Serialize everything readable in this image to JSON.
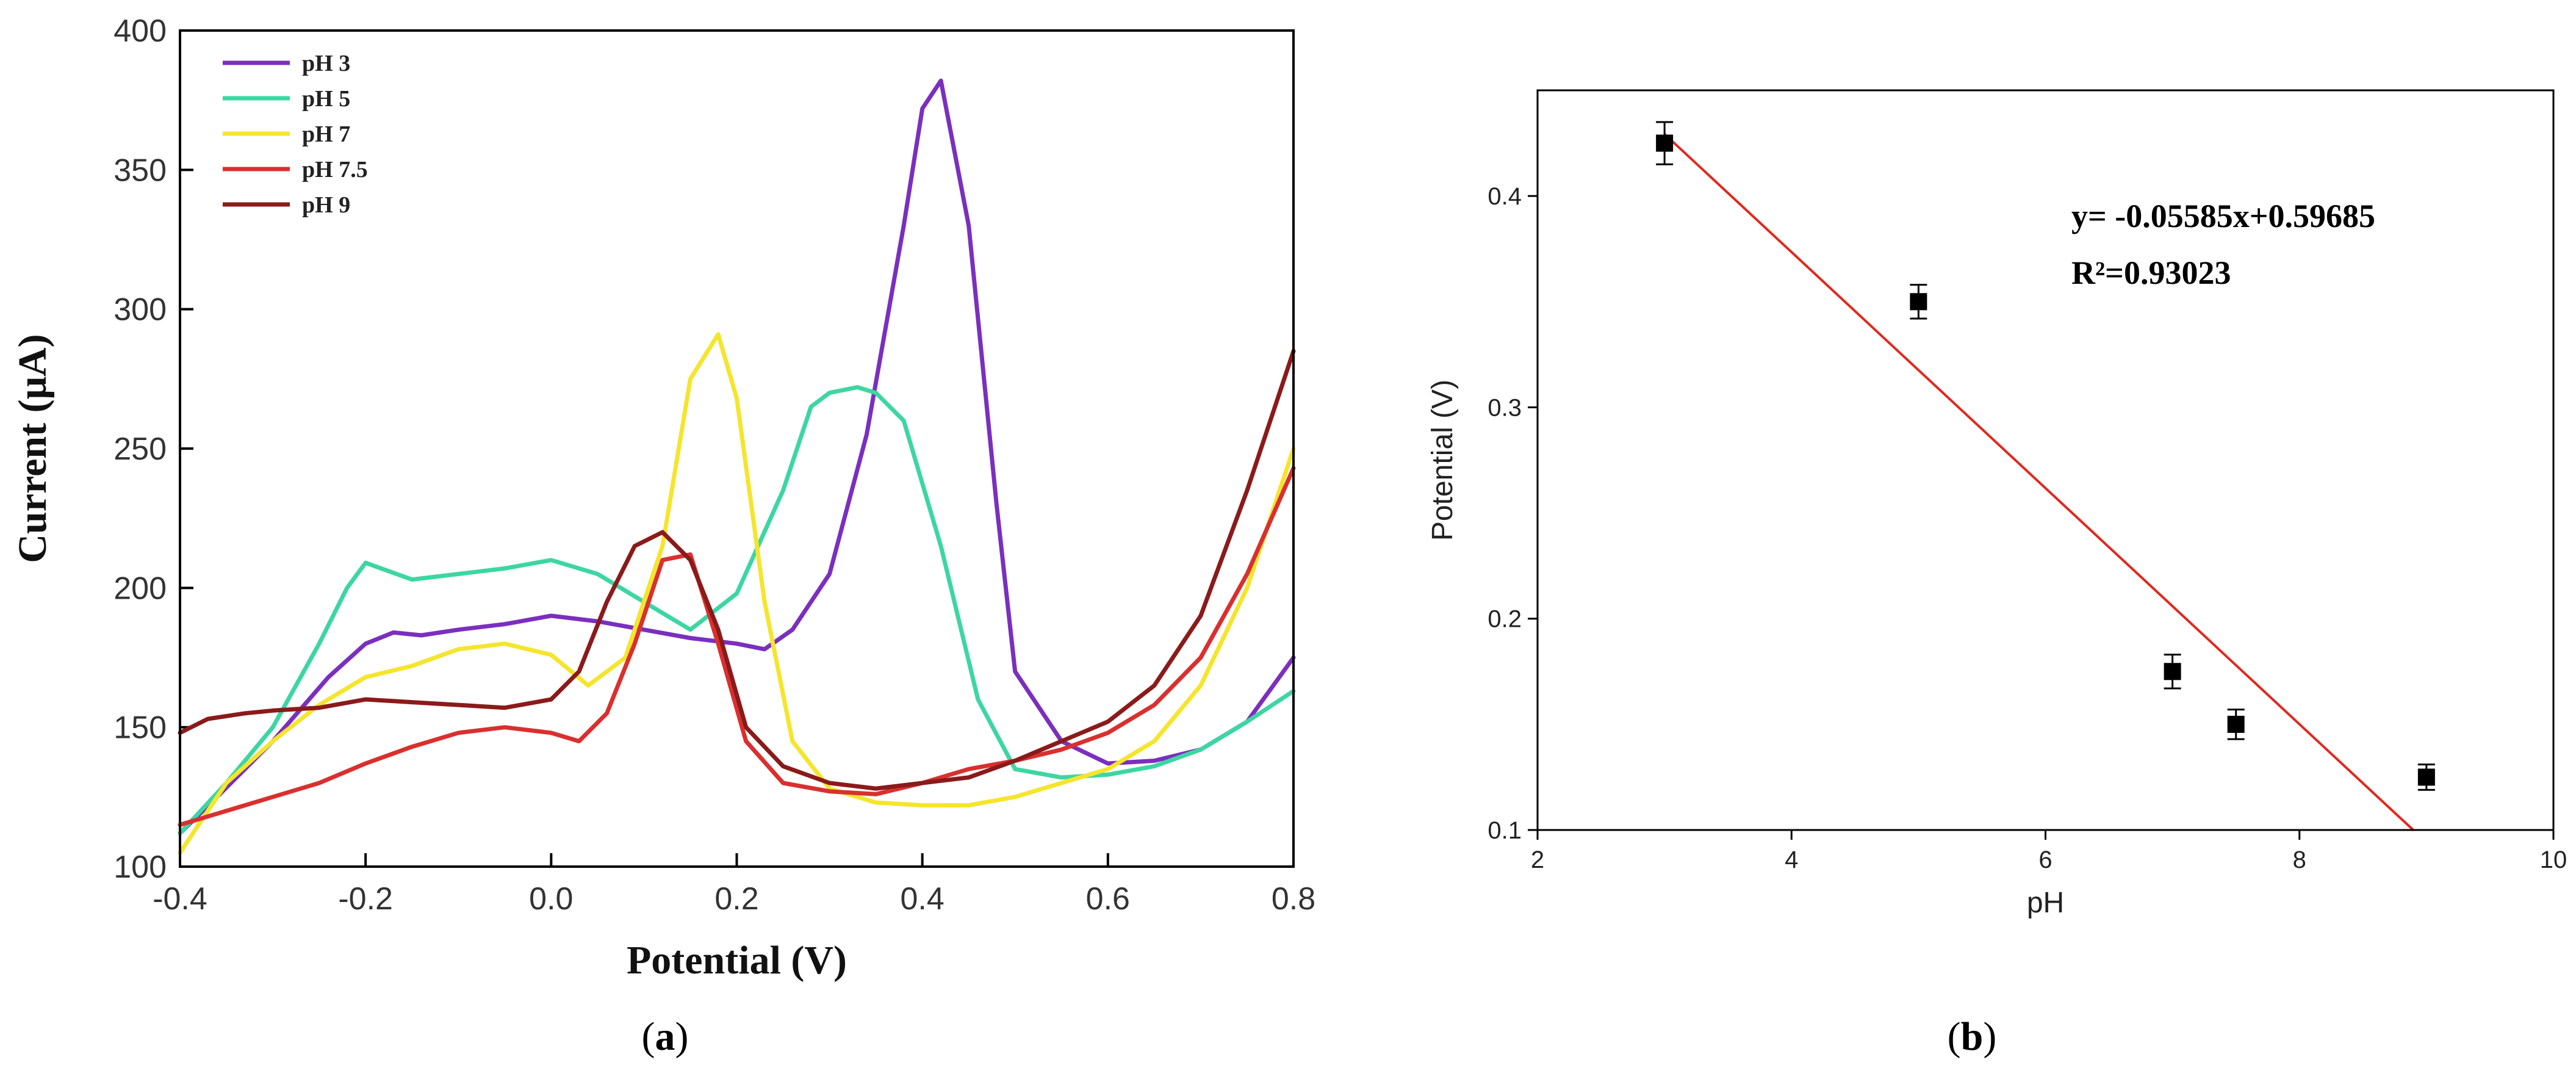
{
  "chart_data": [
    {
      "type": "line",
      "panel_label": "a",
      "title": "",
      "xlabel": "Potential (V)",
      "ylabel": "Current (μA)",
      "xlim": [
        -0.4,
        0.8
      ],
      "ylim": [
        100,
        400
      ],
      "xticks": [
        -0.4,
        -0.2,
        0.0,
        0.2,
        0.4,
        0.6,
        0.8
      ],
      "xtick_labels": [
        "-0.4",
        "-0.2",
        "0.0",
        "0.2",
        "0.4",
        "0.6",
        "0.8"
      ],
      "yticks": [
        100,
        150,
        200,
        250,
        300,
        350,
        400
      ],
      "ytick_labels": [
        "100",
        "150",
        "200",
        "250",
        "300",
        "350",
        "400"
      ],
      "legend_position": "top-left",
      "series": [
        {
          "name": "pH 3",
          "color": "#7B2FBE",
          "x": [
            -0.4,
            -0.36,
            -0.3,
            -0.24,
            -0.2,
            -0.17,
            -0.14,
            -0.1,
            -0.05,
            0.0,
            0.05,
            0.1,
            0.15,
            0.2,
            0.23,
            0.26,
            0.3,
            0.34,
            0.38,
            0.4,
            0.42,
            0.45,
            0.48,
            0.5,
            0.55,
            0.6,
            0.65,
            0.7,
            0.75,
            0.8
          ],
          "y": [
            112,
            125,
            145,
            168,
            180,
            184,
            183,
            185,
            187,
            190,
            188,
            185,
            182,
            180,
            178,
            185,
            205,
            255,
            330,
            372,
            382,
            330,
            230,
            170,
            145,
            137,
            138,
            142,
            152,
            175
          ]
        },
        {
          "name": "pH 5",
          "color": "#3DD6A3",
          "x": [
            -0.4,
            -0.35,
            -0.3,
            -0.25,
            -0.22,
            -0.2,
            -0.15,
            -0.1,
            -0.05,
            0.0,
            0.05,
            0.1,
            0.15,
            0.2,
            0.25,
            0.28,
            0.3,
            0.33,
            0.35,
            0.38,
            0.42,
            0.46,
            0.5,
            0.55,
            0.6,
            0.65,
            0.7,
            0.75,
            0.8
          ],
          "y": [
            112,
            130,
            150,
            180,
            200,
            209,
            203,
            205,
            207,
            210,
            205,
            195,
            185,
            198,
            235,
            265,
            270,
            272,
            270,
            260,
            215,
            160,
            135,
            132,
            133,
            136,
            142,
            152,
            163
          ]
        },
        {
          "name": "pH 7",
          "color": "#F5E52C",
          "x": [
            -0.4,
            -0.35,
            -0.3,
            -0.25,
            -0.2,
            -0.15,
            -0.1,
            -0.05,
            0.0,
            0.04,
            0.08,
            0.12,
            0.15,
            0.18,
            0.2,
            0.23,
            0.26,
            0.3,
            0.35,
            0.4,
            0.45,
            0.5,
            0.55,
            0.6,
            0.65,
            0.7,
            0.75,
            0.8
          ],
          "y": [
            105,
            130,
            145,
            158,
            168,
            172,
            178,
            180,
            176,
            165,
            175,
            215,
            275,
            291,
            268,
            195,
            145,
            128,
            123,
            122,
            122,
            125,
            130,
            135,
            145,
            165,
            200,
            250
          ]
        },
        {
          "name": "pH 7.5",
          "color": "#D9302F",
          "x": [
            -0.4,
            -0.35,
            -0.3,
            -0.25,
            -0.2,
            -0.15,
            -0.1,
            -0.05,
            0.0,
            0.03,
            0.06,
            0.09,
            0.12,
            0.15,
            0.18,
            0.21,
            0.25,
            0.3,
            0.35,
            0.4,
            0.45,
            0.5,
            0.55,
            0.6,
            0.65,
            0.7,
            0.75,
            0.8
          ],
          "y": [
            115,
            120,
            125,
            130,
            137,
            143,
            148,
            150,
            148,
            145,
            155,
            180,
            210,
            212,
            180,
            145,
            130,
            127,
            126,
            130,
            135,
            138,
            142,
            148,
            158,
            175,
            205,
            243
          ]
        },
        {
          "name": "pH 9",
          "color": "#8B1A1A",
          "x": [
            -0.4,
            -0.37,
            -0.33,
            -0.3,
            -0.25,
            -0.2,
            -0.15,
            -0.1,
            -0.05,
            0.0,
            0.03,
            0.06,
            0.09,
            0.12,
            0.15,
            0.18,
            0.21,
            0.25,
            0.3,
            0.35,
            0.4,
            0.45,
            0.5,
            0.55,
            0.6,
            0.65,
            0.7,
            0.75,
            0.8
          ],
          "y": [
            148,
            153,
            155,
            156,
            157,
            160,
            159,
            158,
            157,
            160,
            170,
            195,
            215,
            220,
            210,
            185,
            150,
            136,
            130,
            128,
            130,
            132,
            138,
            145,
            152,
            165,
            190,
            235,
            285
          ]
        }
      ]
    },
    {
      "type": "scatter",
      "panel_label": "b",
      "title": "",
      "xlabel": "pH",
      "ylabel": "Potential (V)",
      "xlim": [
        2,
        10
      ],
      "ylim": [
        0.1,
        0.45
      ],
      "xticks": [
        2,
        4,
        6,
        8,
        10
      ],
      "xtick_labels": [
        "2",
        "4",
        "6",
        "8",
        "10"
      ],
      "yticks": [
        0.1,
        0.2,
        0.3,
        0.4
      ],
      "ytick_labels": [
        "0.1",
        "0.2",
        "0.3",
        "0.4"
      ],
      "series": [
        {
          "name": "data",
          "color": "#000000",
          "x": [
            3,
            5,
            7,
            7.5,
            9
          ],
          "y": [
            0.425,
            0.35,
            0.175,
            0.15,
            0.125
          ],
          "error": [
            0.01,
            0.008,
            0.008,
            0.007,
            0.006
          ]
        }
      ],
      "fit": {
        "slope": -0.05585,
        "intercept": 0.59685,
        "x_range": [
          3,
          8.9
        ],
        "color": "#E0281E"
      },
      "annotations": [
        "y= -0.05585x+0.59685",
        "R²=0.93023"
      ]
    }
  ],
  "captions": {
    "a": "a",
    "b": "b"
  }
}
